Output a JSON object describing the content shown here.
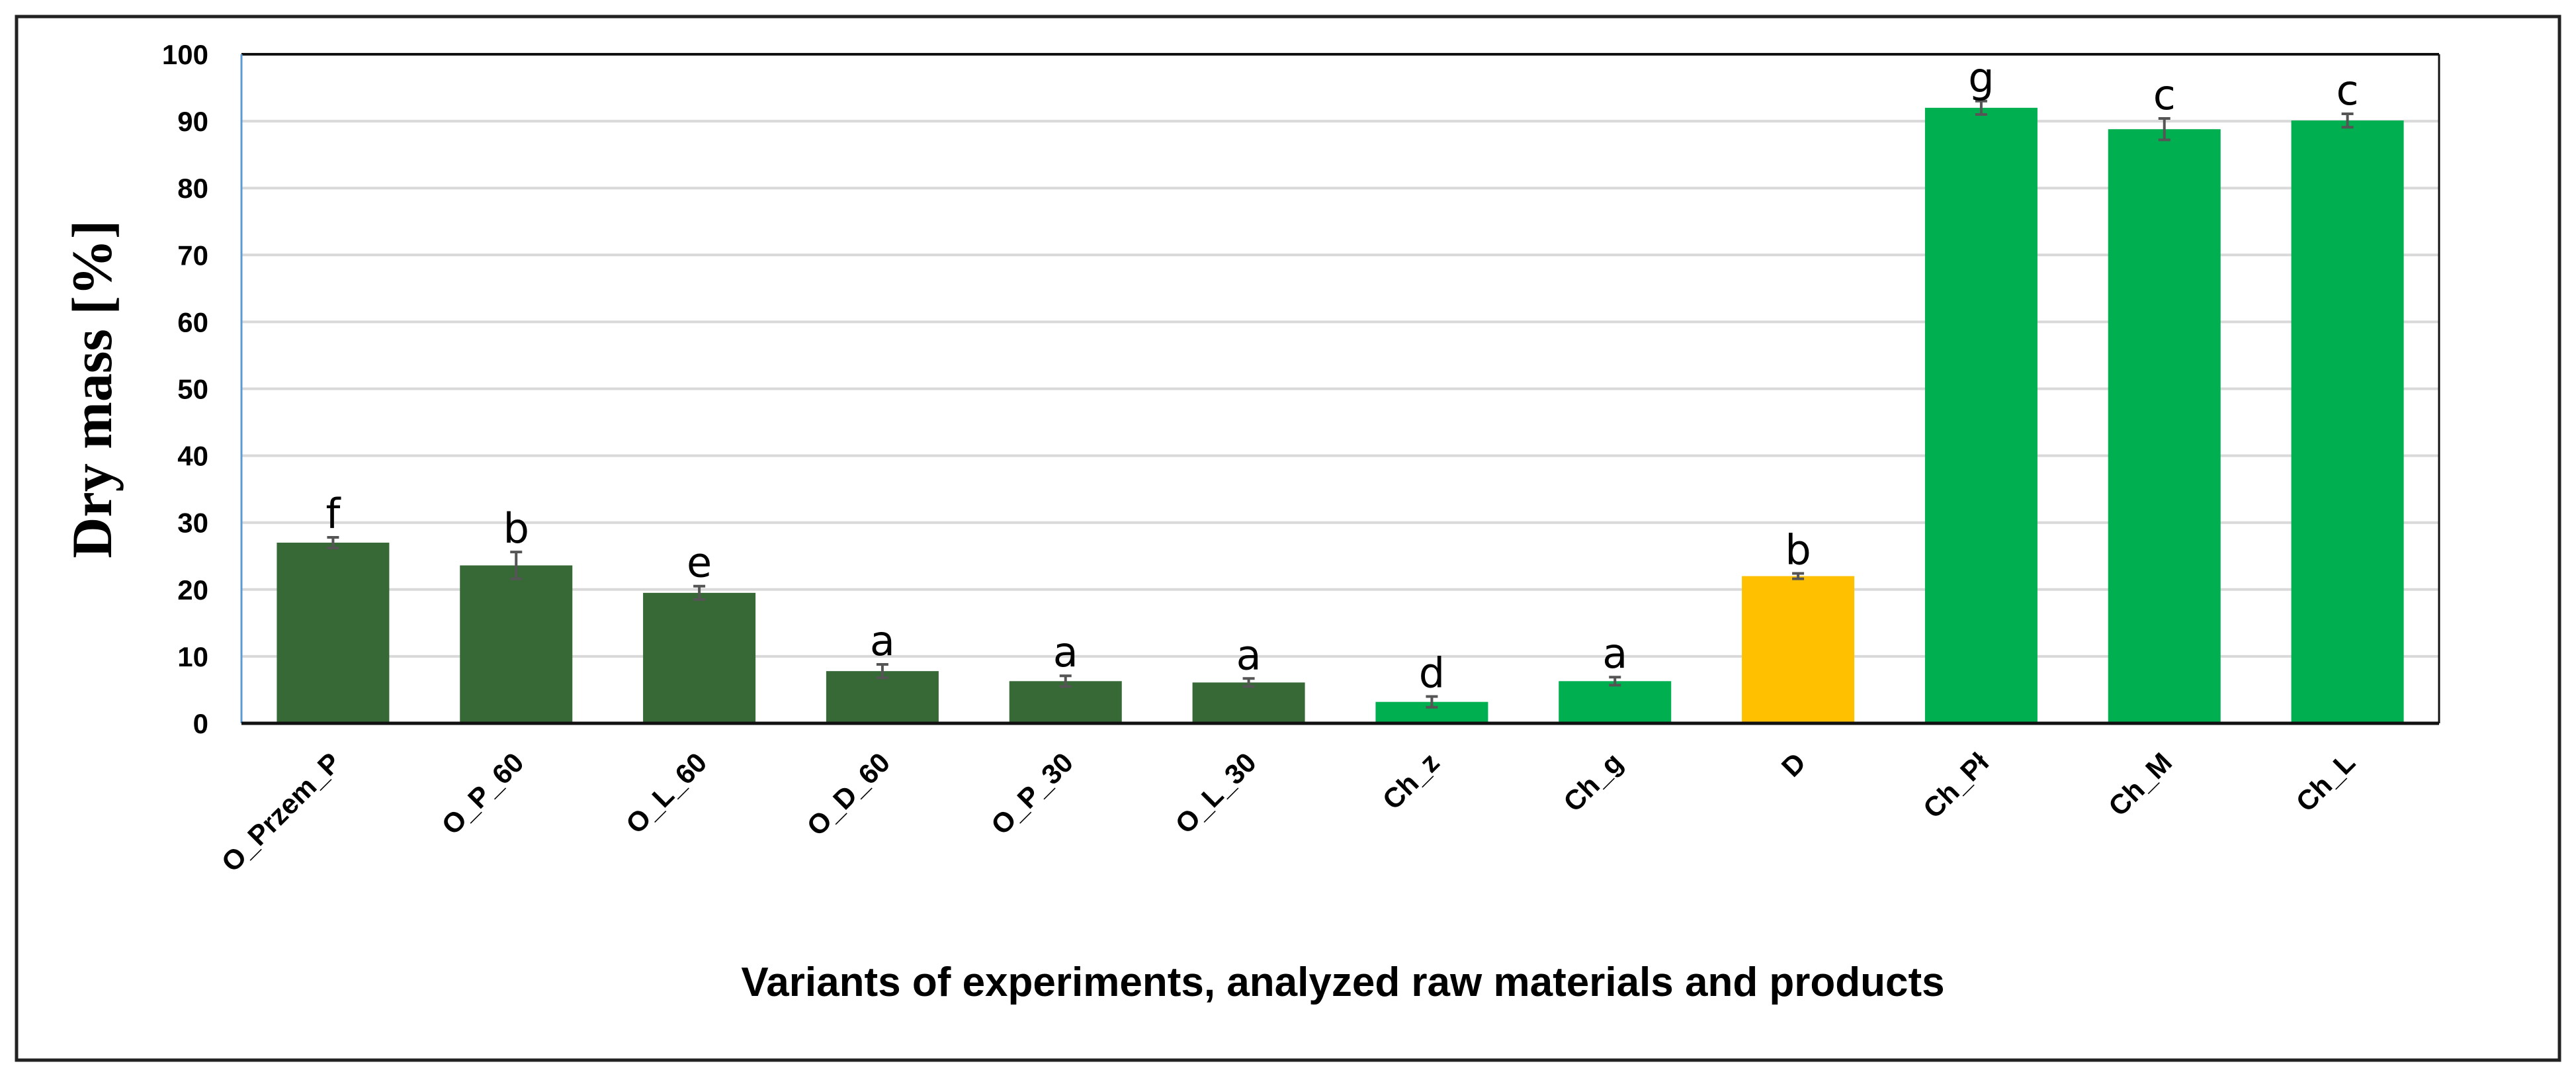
{
  "chart_data": {
    "type": "bar",
    "title": "",
    "xlabel": "Variants of experiments, analyzed raw materials and products",
    "ylabel": "Dry mass [%]",
    "ylim": [
      0,
      100
    ],
    "yticks": [
      0,
      10,
      20,
      30,
      40,
      50,
      60,
      70,
      80,
      90,
      100
    ],
    "grid": true,
    "legend": "none",
    "categories": [
      "O_Przem_P",
      "O_P_60",
      "O_L_60",
      "O_D_60",
      "O_P_30",
      "O_L_30",
      "Ch_z",
      "Ch_g",
      "D",
      "Ch_Pł",
      "Ch_M",
      "Ch_L"
    ],
    "values": [
      27.0,
      23.6,
      19.5,
      7.8,
      6.3,
      6.1,
      3.2,
      6.3,
      22.0,
      92.0,
      88.8,
      90.1
    ],
    "errors": [
      0.8,
      2.0,
      1.0,
      1.0,
      0.8,
      0.6,
      0.8,
      0.6,
      0.4,
      1.0,
      1.6,
      1.0
    ],
    "significance_letters": [
      "f",
      "b",
      "e",
      "a",
      "a",
      "a",
      "d",
      "a",
      "b",
      "g",
      "c",
      "c"
    ],
    "bar_colors": [
      "#376937",
      "#376937",
      "#376937",
      "#376937",
      "#376937",
      "#376937",
      "#00B050",
      "#00B050",
      "#FFC000",
      "#00B050",
      "#00B050",
      "#00B050"
    ]
  }
}
